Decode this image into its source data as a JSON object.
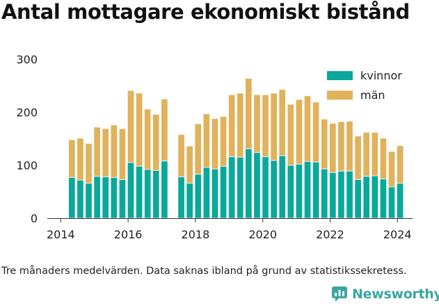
{
  "title": "Antal mottagare ekonomiskt bistånd",
  "caption": "Tre månaders medelvärden. Data saknas ibland på grund av statistikssekretess.",
  "brand": {
    "name": "Newsworthy",
    "icon": "newsworthy-logo-icon"
  },
  "colors": {
    "kvinnor": "#0aa89a",
    "man": "#e0b25c",
    "axis": "#333333",
    "grid": "#cccccc"
  },
  "chart_data": {
    "type": "bar",
    "stacked": true,
    "title": "Antal mottagare ekonomiskt bistånd",
    "xlabel": "",
    "ylabel": "",
    "ylim": [
      0,
      300
    ],
    "xlim": [
      2013.6,
      2024.45
    ],
    "yticks": [
      0,
      100,
      200,
      300
    ],
    "xticks": [
      2014,
      2016,
      2018,
      2020,
      2022,
      2024
    ],
    "legend": "top-right",
    "grid": false,
    "x": [
      2014.33,
      2014.58,
      2014.83,
      2015.08,
      2015.33,
      2015.58,
      2015.83,
      2016.08,
      2016.33,
      2016.58,
      2016.83,
      2017.08,
      2017.58,
      2017.83,
      2018.08,
      2018.33,
      2018.58,
      2018.83,
      2019.08,
      2019.33,
      2019.58,
      2019.83,
      2020.08,
      2020.33,
      2020.58,
      2020.83,
      2021.08,
      2021.33,
      2021.58,
      2021.83,
      2022.08,
      2022.33,
      2022.58,
      2022.83,
      2023.08,
      2023.33,
      2023.58,
      2023.83,
      2024.08
    ],
    "series": [
      {
        "name": "kvinnor",
        "values": [
          77,
          72,
          66,
          79,
          78,
          77,
          73,
          105,
          98,
          92,
          90,
          108,
          78,
          66,
          83,
          96,
          93,
          98,
          116,
          115,
          131,
          124,
          116,
          109,
          118,
          100,
          102,
          107,
          106,
          93,
          86,
          89,
          89,
          73,
          79,
          80,
          74,
          59,
          66
        ]
      },
      {
        "name": "män",
        "values": [
          71,
          79,
          75,
          93,
          91,
          99,
          96,
          136,
          138,
          114,
          106,
          117,
          80,
          70,
          95,
          101,
          95,
          94,
          117,
          121,
          133,
          109,
          117,
          127,
          125,
          115,
          122,
          124,
          113,
          94,
          93,
          93,
          94,
          82,
          83,
          82,
          77,
          67,
          71
        ]
      }
    ]
  }
}
